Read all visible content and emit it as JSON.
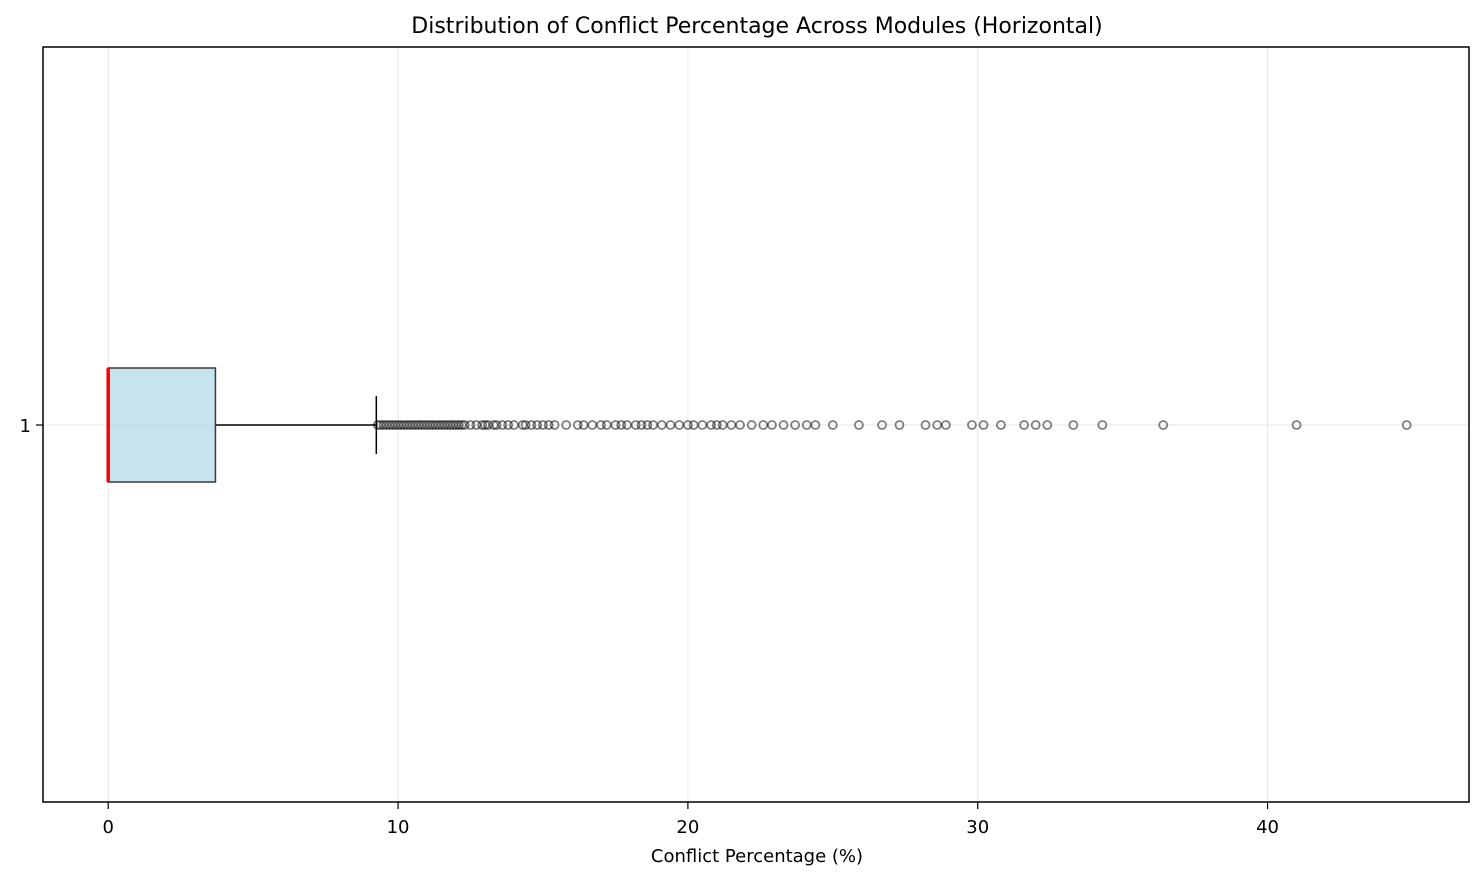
{
  "chart_data": {
    "type": "boxplot",
    "orientation": "horizontal",
    "title": "Distribution of Conflict Percentage Across Modules (Horizontal)",
    "xlabel": "Conflict Percentage (%)",
    "ylabel": "",
    "xlim": [
      -2.25,
      46.95
    ],
    "x_ticks": [
      0,
      10,
      20,
      30,
      40
    ],
    "x_tick_labels": [
      "0",
      "10",
      "20",
      "30",
      "40"
    ],
    "categories": [
      "1"
    ],
    "grid": true,
    "box": {
      "min": 0,
      "q1": 0,
      "median": 0,
      "q3": 3.7,
      "whisker_high": 9.25
    },
    "outliers": [
      9.3,
      9.4,
      9.5,
      9.6,
      9.7,
      9.8,
      9.9,
      10.0,
      10.1,
      10.2,
      10.3,
      10.4,
      10.5,
      10.6,
      10.7,
      10.8,
      10.9,
      11.0,
      11.1,
      11.2,
      11.3,
      11.4,
      11.5,
      11.6,
      11.7,
      11.8,
      11.9,
      12.0,
      12.1,
      12.2,
      12.3,
      12.5,
      12.7,
      12.9,
      13.0,
      13.1,
      13.3,
      13.4,
      13.6,
      13.8,
      14.0,
      14.3,
      14.4,
      14.6,
      14.8,
      15.0,
      15.2,
      15.4,
      15.8,
      16.2,
      16.4,
      16.7,
      17.0,
      17.2,
      17.5,
      17.7,
      17.9,
      18.2,
      18.4,
      18.6,
      18.8,
      19.1,
      19.4,
      19.7,
      20.0,
      20.2,
      20.5,
      20.8,
      21.0,
      21.2,
      21.5,
      21.8,
      22.2,
      22.6,
      22.9,
      23.3,
      23.7,
      24.1,
      24.4,
      25.0,
      25.9,
      26.7,
      27.3,
      28.2,
      28.6,
      28.9,
      29.8,
      30.2,
      30.8,
      31.6,
      32.0,
      32.4,
      33.3,
      34.3,
      36.4,
      41.0,
      44.8
    ],
    "colors": {
      "box_fill": "#add8e6",
      "box_edge": "#3a3a3a",
      "median": "#ff0000",
      "whisker": "#000000",
      "outlier_edge": "#000000",
      "grid": "#e6e6e6"
    }
  }
}
